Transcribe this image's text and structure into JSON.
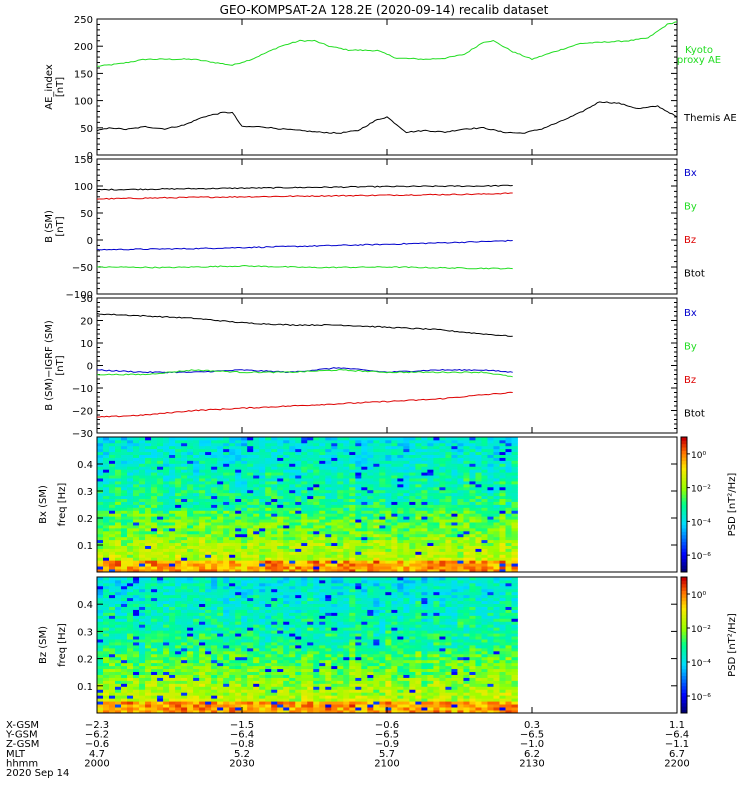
{
  "title": "GEO-KOMPSAT-2A 128.2E (2020-09-14) recalib dataset",
  "colors": {
    "black": "#000000",
    "red": "#dd0000",
    "green": "#22dd22",
    "blue": "#0000cc"
  },
  "chart_data": [
    {
      "type": "line",
      "ylabel": "AE_index",
      "yunit": "[nT]",
      "ylim": [
        0,
        250
      ],
      "yticks": [
        "0",
        "50",
        "100",
        "150",
        "200",
        "250"
      ],
      "x_range_min": [
        0,
        120
      ],
      "legend": [
        {
          "text": "Kyoto",
          "color": "green"
        },
        {
          "text": "proxy AE",
          "color": "green"
        },
        {
          "text": "Themis AE",
          "color": "black"
        }
      ],
      "series": [
        {
          "name": "Kyoto proxy AE",
          "color": "green",
          "x": [
            0,
            5,
            10,
            20,
            28,
            32,
            38,
            42,
            45,
            48,
            52,
            58,
            62,
            68,
            72,
            76,
            80,
            82,
            86,
            90,
            94,
            100,
            106,
            110,
            114,
            118,
            120
          ],
          "y": [
            163,
            168,
            176,
            176,
            165,
            176,
            200,
            210,
            210,
            200,
            193,
            192,
            178,
            176,
            178,
            185,
            208,
            210,
            190,
            176,
            188,
            205,
            208,
            210,
            215,
            240,
            245
          ]
        },
        {
          "name": "Themis AE",
          "color": "black",
          "x": [
            0,
            3,
            6,
            10,
            14,
            18,
            22,
            26,
            28,
            30,
            34,
            38,
            42,
            46,
            50,
            54,
            56,
            58,
            60,
            64,
            68,
            72,
            76,
            80,
            84,
            88,
            92,
            96,
            100,
            104,
            108,
            112,
            116,
            120
          ],
          "y": [
            45,
            50,
            47,
            52,
            48,
            55,
            70,
            78,
            78,
            52,
            52,
            48,
            45,
            42,
            40,
            45,
            55,
            65,
            70,
            42,
            45,
            42,
            48,
            50,
            42,
            40,
            48,
            62,
            78,
            98,
            95,
            85,
            90,
            70
          ]
        }
      ]
    },
    {
      "type": "line",
      "ylabel": "B (SM)",
      "yunit": "[nT]",
      "ylim": [
        -100,
        150
      ],
      "yticks": [
        "−100",
        "−50",
        "0",
        "50",
        "100",
        "150"
      ],
      "x_range_min": [
        0,
        120
      ],
      "legend": [
        {
          "text": "Bx",
          "color": "blue"
        },
        {
          "text": "By",
          "color": "green"
        },
        {
          "text": "Bz",
          "color": "red"
        },
        {
          "text": "Btot",
          "color": "black"
        }
      ],
      "series": [
        {
          "name": "Btot",
          "color": "black",
          "x": [
            0,
            20,
            40,
            60,
            80,
            86
          ],
          "y": [
            93,
            95,
            97,
            99,
            100,
            101
          ]
        },
        {
          "name": "Bz",
          "color": "red",
          "x": [
            0,
            20,
            40,
            60,
            80,
            86
          ],
          "y": [
            76,
            79,
            81,
            83,
            85,
            87
          ]
        },
        {
          "name": "Bx",
          "color": "blue",
          "x": [
            0,
            20,
            40,
            60,
            80,
            86
          ],
          "y": [
            -18,
            -16,
            -12,
            -8,
            -3,
            -1
          ]
        },
        {
          "name": "By",
          "color": "green",
          "x": [
            0,
            15,
            30,
            45,
            60,
            75,
            86
          ],
          "y": [
            -50,
            -51,
            -48,
            -51,
            -50,
            -52,
            -53
          ]
        }
      ]
    },
    {
      "type": "line",
      "ylabel": "B (SM)−IGRF (SM)",
      "yunit": "[nT]",
      "ylim": [
        -30,
        30
      ],
      "yticks": [
        "−30",
        "−20",
        "−10",
        "0",
        "10",
        "20",
        "30"
      ],
      "x_range_min": [
        0,
        120
      ],
      "legend": [
        {
          "text": "Bx",
          "color": "blue"
        },
        {
          "text": "By",
          "color": "green"
        },
        {
          "text": "Bz",
          "color": "red"
        },
        {
          "text": "Btot",
          "color": "black"
        }
      ],
      "series": [
        {
          "name": "Btot",
          "color": "black",
          "x": [
            0,
            10,
            20,
            30,
            40,
            50,
            60,
            70,
            80,
            86
          ],
          "y": [
            23,
            22,
            21,
            19,
            18,
            18,
            17,
            16,
            14,
            13
          ]
        },
        {
          "name": "Bx",
          "color": "blue",
          "x": [
            0,
            10,
            20,
            30,
            40,
            50,
            60,
            70,
            80,
            86
          ],
          "y": [
            -2,
            -3,
            -3,
            -2,
            -3,
            -1,
            -3,
            -2,
            -2,
            -3
          ]
        },
        {
          "name": "By",
          "color": "green",
          "x": [
            0,
            10,
            20,
            30,
            40,
            50,
            60,
            70,
            80,
            86
          ],
          "y": [
            -4,
            -4,
            -2,
            -3,
            -3,
            -2,
            -3,
            -3,
            -3,
            -5
          ]
        },
        {
          "name": "Bz",
          "color": "red",
          "x": [
            0,
            10,
            20,
            30,
            40,
            50,
            60,
            70,
            80,
            86
          ],
          "y": [
            -23,
            -22,
            -20,
            -19,
            -18,
            -17,
            -16,
            -15,
            -13,
            -12
          ]
        }
      ]
    },
    {
      "type": "heatmap",
      "ylabel": "Bx (SM)",
      "ylabel2": "freq [Hz]",
      "ylim": [
        0,
        0.5
      ],
      "yticks": [
        "0.1",
        "0.2",
        "0.3",
        "0.4"
      ],
      "x_range_min": [
        0,
        120
      ],
      "data_x_max_min": 87,
      "colorbar_label": "PSD [nT²/Hz]",
      "colorbar_ticks": [
        "10⁰",
        "10⁻²",
        "10⁻⁴",
        "10⁻⁶"
      ],
      "colorbar_log_range": [
        -7,
        1
      ]
    },
    {
      "type": "heatmap",
      "ylabel": "Bz (SM)",
      "ylabel2": "freq [Hz]",
      "ylim": [
        0,
        0.5
      ],
      "yticks": [
        "0.1",
        "0.2",
        "0.3",
        "0.4"
      ],
      "x_range_min": [
        0,
        120
      ],
      "data_x_max_min": 87,
      "colorbar_label": "PSD [nT²/Hz]",
      "colorbar_ticks": [
        "10⁰",
        "10⁻²",
        "10⁻⁴",
        "10⁻⁶"
      ],
      "colorbar_log_range": [
        -7,
        1
      ]
    }
  ],
  "ephemeris": {
    "row_labels": [
      "X-GSM",
      "Y-GSM",
      "Z-GSM",
      "MLT",
      "hhmm"
    ],
    "columns": [
      {
        "x_min": 0,
        "values": [
          "−2.3",
          "−6.2",
          "−0.6",
          "4.7",
          "2000"
        ]
      },
      {
        "x_min": 30,
        "values": [
          "−1.5",
          "−6.4",
          "−0.8",
          "5.2",
          "2030"
        ]
      },
      {
        "x_min": 60,
        "values": [
          "−0.6",
          "−6.5",
          "−0.9",
          "5.7",
          "2100"
        ]
      },
      {
        "x_min": 90,
        "values": [
          "0.3",
          "−6.5",
          "−1.0",
          "6.2",
          "2130"
        ]
      },
      {
        "x_min": 120,
        "values": [
          "1.1",
          "−6.4",
          "−1.1",
          "6.7",
          "2200"
        ]
      }
    ],
    "date": "2020 Sep 14"
  }
}
